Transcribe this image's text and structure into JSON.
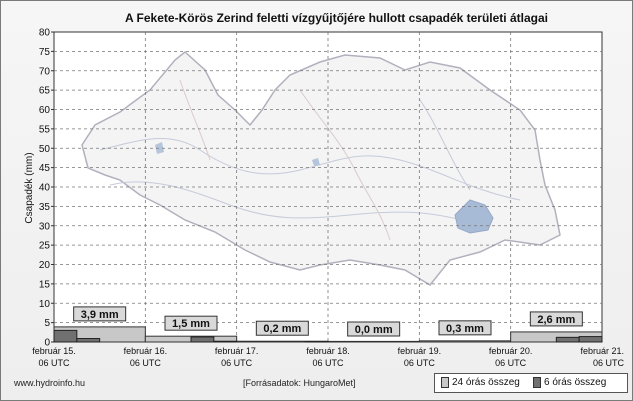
{
  "window": {
    "title": "A Fekete-Körös Zerind feletti vízgyűjtőjére hullott csapadék területi átlagai"
  },
  "chart_data": {
    "type": "bar",
    "title": "A Fekete-Körös Zerind feletti vízgyűjtőjére hullott csapadék területi átlagai",
    "ylabel": "Csapadék (mm)",
    "ylim": [
      0,
      80
    ],
    "yticks": [
      0,
      5,
      10,
      15,
      20,
      25,
      30,
      35,
      40,
      45,
      50,
      55,
      60,
      65,
      70,
      75,
      80
    ],
    "grid": true,
    "x_ticks": [
      {
        "line1": "február 15.",
        "line2": "06 UTC"
      },
      {
        "line1": "február 16.",
        "line2": "06 UTC"
      },
      {
        "line1": "február 17.",
        "line2": "06 UTC"
      },
      {
        "line1": "február 18.",
        "line2": "06 UTC"
      },
      {
        "line1": "február 19.",
        "line2": "06 UTC"
      },
      {
        "line1": "február 20.",
        "line2": "06 UTC"
      },
      {
        "line1": "február 21.",
        "line2": "06 UTC"
      }
    ],
    "series": [
      {
        "name": "24 órás összeg",
        "color": "#c8c8c8",
        "values": [
          3.9,
          1.5,
          0.2,
          0.0,
          0.3,
          2.6
        ],
        "labels": [
          "3,9 mm",
          "1,5 mm",
          "0,2 mm",
          "0,0 mm",
          "0,3 mm",
          "2,6 mm"
        ]
      },
      {
        "name": "6 órás összeg",
        "color": "#707070",
        "values": [
          3.0,
          0.9,
          0.0,
          0.0,
          0.0,
          0.0,
          1.3,
          0.2,
          0.0,
          0.0,
          0.0,
          0.1,
          0.0,
          0.0,
          0.0,
          0.0,
          0.0,
          0.0,
          0.0,
          0.0,
          0.0,
          0.0,
          1.2,
          1.4
        ]
      }
    ]
  },
  "footer": {
    "source_site": "www.hydroinfo.hu",
    "data_source": "[Forrásadatok: HungaroMet]"
  },
  "legend": {
    "item_24h": "24 órás összeg",
    "item_6h": "6 órás összeg"
  }
}
